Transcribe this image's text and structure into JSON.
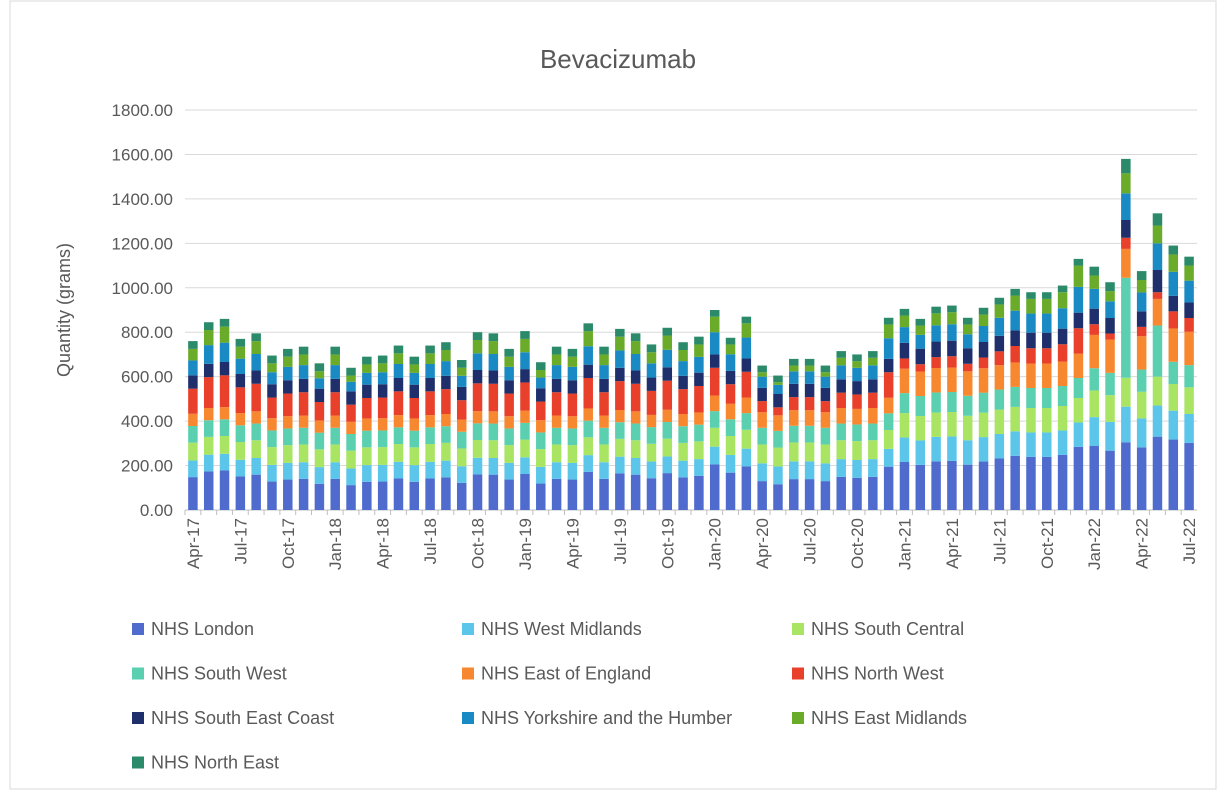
{
  "chart_data": {
    "type": "bar",
    "stacked": true,
    "title": "Bevacizumab",
    "y_label": "Quantity (grams)",
    "categories": [
      "Apr-17",
      null,
      null,
      "Jul-17",
      null,
      null,
      "Oct-17",
      null,
      null,
      "Jan-18",
      null,
      null,
      "Apr-18",
      null,
      null,
      "Jul-18",
      null,
      null,
      "Oct-18",
      null,
      null,
      "Jan-19",
      null,
      null,
      "Apr-19",
      null,
      null,
      "Jul-19",
      null,
      null,
      "Oct-19",
      null,
      null,
      "Jan-20",
      null,
      null,
      "Apr-20",
      null,
      null,
      "Jul-20",
      null,
      null,
      "Oct-20",
      null,
      null,
      "Jan-21",
      null,
      null,
      "Apr-21",
      null,
      null,
      "Jul-21",
      null,
      null,
      "Oct-21",
      null,
      null,
      "Jan-22",
      null,
      null,
      "Apr-22",
      null,
      null,
      "Jul-22"
    ],
    "ylim": [
      0,
      1800
    ],
    "yticks": [
      {
        "value": 0,
        "label": "0.00"
      },
      {
        "value": 200,
        "label": "200.00"
      },
      {
        "value": 400,
        "label": "400.00"
      },
      {
        "value": 600,
        "label": "600.00"
      },
      {
        "value": 800,
        "label": "800.00"
      },
      {
        "value": 1000,
        "label": "1000.00"
      },
      {
        "value": 1200,
        "label": "1200.00"
      },
      {
        "value": 1400,
        "label": "1400.00"
      },
      {
        "value": 1600,
        "label": "1600.00"
      },
      {
        "value": 1800,
        "label": "1800.00"
      }
    ],
    "grid": true,
    "legend": "bottom",
    "series": [
      {
        "name": "NHS London",
        "color": "#4f6bce",
        "values": [
          148,
          174,
          178,
          151,
          159,
          128,
          137,
          140,
          118,
          140,
          112,
          127,
          128,
          142,
          127,
          142,
          147,
          122,
          160,
          159,
          137,
          162,
          119,
          140,
          137,
          172,
          140,
          165,
          159,
          143,
          166,
          147,
          154,
          205,
          168,
          196,
          130,
          116,
          139,
          139,
          130,
          149,
          145,
          149,
          195,
          216,
          203,
          219,
          221,
          204,
          218,
          232,
          244,
          239,
          239,
          248,
          284,
          288,
          267,
          305,
          282,
          330,
          317,
          302
        ]
      },
      {
        "name": "NHS West Midlands",
        "color": "#5bc5ea",
        "values": [
          75,
          75,
          75,
          75,
          75,
          75,
          75,
          75,
          75,
          75,
          75,
          75,
          75,
          75,
          75,
          75,
          75,
          75,
          75,
          75,
          75,
          75,
          75,
          75,
          75,
          75,
          75,
          75,
          75,
          75,
          75,
          75,
          75,
          80,
          80,
          80,
          80,
          80,
          80,
          80,
          80,
          80,
          80,
          80,
          80,
          110,
          110,
          110,
          110,
          110,
          110,
          110,
          110,
          110,
          110,
          110,
          110,
          130,
          130,
          160,
          130,
          140,
          130,
          130
        ]
      },
      {
        "name": "NHS South Central",
        "color": "#a9e463",
        "values": [
          80,
          80,
          80,
          80,
          80,
          80,
          80,
          80,
          80,
          80,
          80,
          80,
          80,
          80,
          80,
          80,
          80,
          80,
          80,
          80,
          80,
          80,
          80,
          80,
          80,
          80,
          80,
          80,
          80,
          80,
          80,
          80,
          80,
          85,
          85,
          85,
          85,
          85,
          85,
          85,
          85,
          85,
          85,
          85,
          85,
          110,
          110,
          110,
          110,
          110,
          110,
          110,
          110,
          110,
          110,
          110,
          110,
          120,
          120,
          130,
          120,
          130,
          120,
          120
        ]
      },
      {
        "name": "NHS South West",
        "color": "#5ad0b0",
        "values": [
          75,
          75,
          75,
          75,
          75,
          75,
          75,
          75,
          75,
          75,
          75,
          75,
          75,
          75,
          75,
          75,
          75,
          75,
          75,
          75,
          75,
          75,
          75,
          75,
          75,
          75,
          75,
          75,
          75,
          75,
          75,
          75,
          75,
          75,
          75,
          75,
          75,
          75,
          75,
          75,
          75,
          75,
          75,
          75,
          75,
          90,
          90,
          90,
          90,
          90,
          90,
          90,
          90,
          90,
          90,
          90,
          90,
          100,
          100,
          450,
          100,
          230,
          100,
          100
        ]
      },
      {
        "name": "NHS East of England",
        "color": "#f7882f",
        "values": [
          55,
          55,
          55,
          55,
          55,
          55,
          55,
          55,
          55,
          55,
          55,
          55,
          55,
          55,
          55,
          55,
          55,
          55,
          55,
          55,
          55,
          55,
          55,
          55,
          55,
          55,
          55,
          55,
          55,
          55,
          55,
          55,
          55,
          70,
          70,
          70,
          70,
          70,
          70,
          70,
          70,
          70,
          70,
          70,
          70,
          110,
          110,
          110,
          110,
          110,
          110,
          110,
          110,
          110,
          110,
          110,
          110,
          150,
          150,
          130,
          150,
          120,
          150,
          150
        ]
      },
      {
        "name": "NHS North West",
        "color": "#e8402a",
        "values": [
          113,
          139,
          143,
          116,
          124,
          93,
          102,
          105,
          83,
          105,
          77,
          92,
          93,
          107,
          92,
          107,
          112,
          87,
          125,
          124,
          102,
          127,
          84,
          105,
          102,
          137,
          105,
          130,
          124,
          108,
          131,
          112,
          119,
          125,
          88,
          116,
          50,
          36,
          59,
          59,
          50,
          69,
          65,
          69,
          115,
          46,
          33,
          49,
          51,
          34,
          48,
          62,
          74,
          69,
          69,
          78,
          114,
          48,
          27,
          50,
          42,
          30,
          77,
          62
        ]
      },
      {
        "name": "NHS South East Coast",
        "color": "#1f2f6b",
        "values": [
          60,
          60,
          60,
          60,
          60,
          60,
          60,
          60,
          60,
          60,
          60,
          60,
          60,
          60,
          60,
          60,
          60,
          60,
          60,
          60,
          60,
          60,
          60,
          60,
          60,
          60,
          60,
          60,
          60,
          60,
          60,
          60,
          60,
          60,
          60,
          60,
          60,
          60,
          60,
          60,
          60,
          60,
          60,
          60,
          60,
          70,
          70,
          70,
          70,
          70,
          70,
          70,
          70,
          70,
          70,
          70,
          70,
          70,
          70,
          80,
          70,
          100,
          70,
          70
        ]
      },
      {
        "name": "NHS Yorkshire and the Humber",
        "color": "#1a8ac4",
        "values": [
          67,
          84,
          87,
          69,
          74,
          54,
          60,
          62,
          47,
          62,
          43,
          53,
          54,
          63,
          53,
          63,
          66,
          50,
          75,
          74,
          60,
          76,
          48,
          62,
          60,
          83,
          62,
          78,
          74,
          64,
          79,
          66,
          71,
          100,
          75,
          94,
          50,
          41,
          56,
          56,
          50,
          63,
          60,
          63,
          93,
          71,
          62,
          73,
          74,
          63,
          72,
          81,
          89,
          86,
          86,
          92,
          116,
          89,
          75,
          120,
          85,
          120,
          108,
          98
        ]
      },
      {
        "name": "NHS East Midlands",
        "color": "#6aab2a",
        "values": [
          52,
          68,
          72,
          54,
          58,
          40,
          46,
          48,
          32,
          48,
          28,
          38,
          40,
          48,
          38,
          48,
          50,
          36,
          60,
          58,
          46,
          60,
          34,
          48,
          46,
          68,
          48,
          62,
          58,
          50,
          64,
          50,
          56,
          70,
          44,
          64,
          20,
          12,
          26,
          26,
          20,
          34,
          30,
          34,
          62,
          52,
          42,
          54,
          54,
          44,
          52,
          60,
          68,
          66,
          66,
          72,
          96,
          60,
          46,
          90,
          56,
          80,
          78,
          68
        ]
      },
      {
        "name": "NHS North East",
        "color": "#2a8a6a",
        "values": [
          35,
          35,
          35,
          35,
          35,
          35,
          35,
          35,
          35,
          35,
          35,
          35,
          35,
          35,
          35,
          35,
          35,
          35,
          35,
          35,
          35,
          35,
          35,
          35,
          35,
          35,
          35,
          35,
          35,
          35,
          35,
          35,
          35,
          30,
          30,
          30,
          30,
          30,
          30,
          30,
          30,
          30,
          30,
          30,
          30,
          30,
          30,
          30,
          30,
          30,
          30,
          30,
          30,
          30,
          30,
          30,
          30,
          40,
          40,
          65,
          40,
          55,
          40,
          40
        ]
      }
    ]
  }
}
